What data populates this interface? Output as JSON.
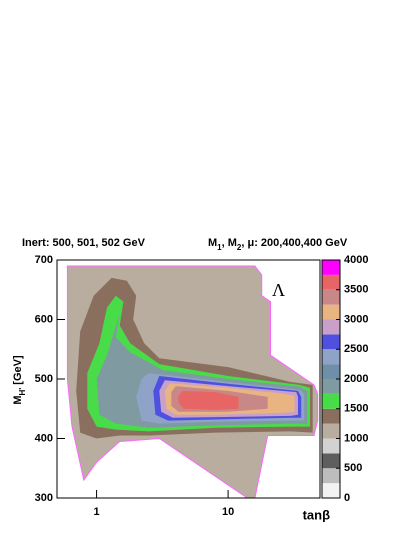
{
  "chart_data": {
    "type": "contour",
    "header_left": "Inert: 500, 501, 502 GeV",
    "header_right": [
      "M",
      "1",
      ", M",
      "2",
      ", μ:  200,400,400 GeV"
    ],
    "annotation": "Λ",
    "x_label": "tanβ",
    "y_label": [
      "M",
      "H'",
      " [GeV]"
    ],
    "xlog": true,
    "xlim": [
      0.5,
      50
    ],
    "xticks": [
      1,
      10
    ],
    "ylim": [
      300,
      700
    ],
    "yticks": [
      300,
      400,
      500,
      600,
      700
    ],
    "colorbar": {
      "levels": [
        0,
        250,
        500,
        750,
        1000,
        1250,
        1500,
        1750,
        2000,
        2250,
        2500,
        2750,
        3000,
        3250,
        3500,
        3750,
        4000
      ],
      "colors": [
        "#f2f2f2",
        "#bdbdbd",
        "#5e5e5e",
        "#d2d2d2",
        "#b8ad9f",
        "#8b6f5e",
        "#48dd48",
        "#7f9aa0",
        "#6f8fa8",
        "#8fa3c8",
        "#5050e0",
        "#c8a0c8",
        "#e8b482",
        "#c88888",
        "#e86565",
        "#ff00ff"
      ],
      "ticks": [
        0,
        500,
        1000,
        1500,
        2000,
        2500,
        3000,
        3500,
        4000
      ]
    },
    "contours": [
      {
        "level": 1000,
        "x": [
          0.6,
          16,
          18,
          18,
          21,
          21,
          45,
          48,
          48,
          45,
          20,
          16,
          14,
          3.0,
          1.5,
          1.0,
          0.8,
          0.65,
          0.6
        ],
        "y": [
          690,
          690,
          675,
          640,
          630,
          540,
          490,
          475,
          430,
          405,
          405,
          300,
          300,
          400,
          395,
          360,
          330,
          420,
          500
        ]
      },
      {
        "level": 1250,
        "x": [
          1.3,
          1.7,
          2.0,
          1.9,
          2.3,
          3.0,
          10,
          30,
          44,
          44,
          30,
          8,
          2.5,
          1.5,
          1.0,
          0.75,
          0.7,
          0.75,
          0.95
        ],
        "y": [
          670,
          665,
          640,
          600,
          560,
          535,
          520,
          495,
          490,
          410,
          412,
          410,
          405,
          405,
          400,
          410,
          480,
          580,
          640
        ]
      },
      {
        "level": 1500,
        "x": [
          1.4,
          1.6,
          1.5,
          1.8,
          3.0,
          10,
          35,
          42,
          42,
          30,
          8,
          2.5,
          1.4,
          1.0,
          0.85,
          0.85,
          1.05,
          1.2
        ],
        "y": [
          640,
          630,
          590,
          560,
          525,
          505,
          490,
          485,
          420,
          420,
          418,
          412,
          415,
          420,
          450,
          510,
          560,
          620
        ]
      },
      {
        "level": 1750,
        "x": [
          1.5,
          1.4,
          1.8,
          3.2,
          10,
          35,
          40,
          40,
          30,
          8,
          2.5,
          1.4,
          1.05,
          1.0,
          1.2
        ],
        "y": [
          610,
          570,
          545,
          515,
          500,
          487,
          480,
          425,
          425,
          422,
          418,
          425,
          440,
          500,
          540
        ]
      },
      {
        "level": 2250,
        "x": [
          2.5,
          10,
          35,
          38,
          38,
          30,
          8,
          3,
          2.2,
          2.0,
          2.2
        ],
        "y": [
          510,
          495,
          482,
          475,
          430,
          430,
          428,
          425,
          430,
          470,
          500
        ]
      },
      {
        "level": 2500,
        "x": [
          3.0,
          10,
          34,
          36,
          36,
          30,
          8,
          3.5,
          2.8,
          2.7
        ],
        "y": [
          505,
          492,
          480,
          470,
          435,
          435,
          432,
          430,
          440,
          480
        ]
      },
      {
        "level": 2750,
        "x": [
          3.3,
          10,
          33,
          34,
          34,
          30,
          8,
          3.8,
          3.1,
          3.0
        ],
        "y": [
          498,
          488,
          478,
          470,
          440,
          438,
          436,
          435,
          445,
          480
        ]
      },
      {
        "level": 3000,
        "x": [
          3.6,
          10,
          25,
          32,
          32,
          25,
          8,
          4,
          3.4,
          3.3
        ],
        "y": [
          493,
          485,
          476,
          472,
          445,
          443,
          440,
          440,
          450,
          480
        ]
      },
      {
        "level": 3250,
        "x": [
          4,
          10,
          20,
          20,
          10,
          4.2,
          3.7,
          3.7
        ],
        "y": [
          488,
          480,
          470,
          450,
          445,
          445,
          455,
          478
        ]
      },
      {
        "level": 3500,
        "x": [
          4.5,
          8,
          12,
          12,
          8,
          4.6,
          4.2,
          4.2
        ],
        "y": [
          480,
          478,
          470,
          450,
          448,
          450,
          460,
          472
        ]
      }
    ]
  }
}
